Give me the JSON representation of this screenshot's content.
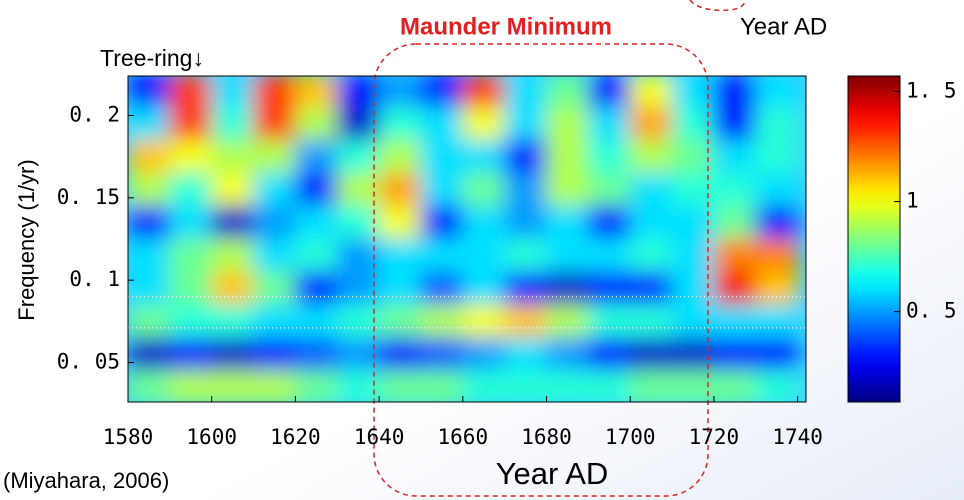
{
  "chart_data": {
    "type": "heatmap",
    "title": "Maunder Minimum",
    "annotations": [
      "Tree-ring↓",
      "Year AD",
      "(Miyahara, 2006)"
    ],
    "xlabel": "Year AD",
    "ylabel": "Frequency  (1/yr)",
    "x": [
      1585,
      1595,
      1605,
      1615,
      1625,
      1635,
      1645,
      1655,
      1665,
      1675,
      1685,
      1695,
      1705,
      1715,
      1725,
      1735
    ],
    "y": [
      0.215,
      0.195,
      0.175,
      0.155,
      0.135,
      0.115,
      0.095,
      0.075,
      0.055,
      0.035
    ],
    "z": [
      [
        0.3,
        1.3,
        0.6,
        1.3,
        1.1,
        0.3,
        0.5,
        0.3,
        1.3,
        0.6,
        0.8,
        0.3,
        1.0,
        0.6,
        0.3,
        0.6
      ],
      [
        0.6,
        1.3,
        0.7,
        1.3,
        0.9,
        0.2,
        0.7,
        0.6,
        1.0,
        0.6,
        0.9,
        0.6,
        1.15,
        0.7,
        0.3,
        0.7
      ],
      [
        1.1,
        1.0,
        0.9,
        0.9,
        0.5,
        0.7,
        0.9,
        0.6,
        0.6,
        0.3,
        0.9,
        0.7,
        0.9,
        0.8,
        0.6,
        0.7
      ],
      [
        0.9,
        0.7,
        1.0,
        0.6,
        0.3,
        0.9,
        1.15,
        0.6,
        0.8,
        0.5,
        0.9,
        0.8,
        0.6,
        0.7,
        0.7,
        0.6
      ],
      [
        0.3,
        0.6,
        0.2,
        0.5,
        0.6,
        0.7,
        1.0,
        0.3,
        0.6,
        0.5,
        0.6,
        0.3,
        0.6,
        0.6,
        0.8,
        0.3
      ],
      [
        0.6,
        0.8,
        0.9,
        0.6,
        0.7,
        0.5,
        0.6,
        0.6,
        0.6,
        0.7,
        0.6,
        0.6,
        0.7,
        0.6,
        1.2,
        1.2
      ],
      [
        0.6,
        0.8,
        1.1,
        0.8,
        0.3,
        0.5,
        0.6,
        0.4,
        0.6,
        0.3,
        0.2,
        0.3,
        0.3,
        0.6,
        1.4,
        1.1
      ],
      [
        0.8,
        0.7,
        0.7,
        0.6,
        0.6,
        0.7,
        0.8,
        0.9,
        1.0,
        1.1,
        0.9,
        0.7,
        0.7,
        0.6,
        0.6,
        0.6
      ],
      [
        0.2,
        0.3,
        0.2,
        0.3,
        0.4,
        0.5,
        0.3,
        0.4,
        0.5,
        0.6,
        0.5,
        0.3,
        0.2,
        0.2,
        0.3,
        0.3
      ],
      [
        0.8,
        0.9,
        0.9,
        0.9,
        0.8,
        0.7,
        0.8,
        0.8,
        0.7,
        0.7,
        0.7,
        0.7,
        0.8,
        0.8,
        0.8,
        0.7
      ]
    ],
    "xlim": [
      1580,
      1742
    ],
    "ylim": [
      0.026,
      0.224
    ],
    "xticks": [
      1580,
      1600,
      1620,
      1640,
      1660,
      1680,
      1700,
      1720,
      1740
    ],
    "yticks": [
      {
        "value": 0.05,
        "label": "0. 05"
      },
      {
        "value": 0.1,
        "label": "0. 1"
      },
      {
        "value": 0.15,
        "label": "0. 15"
      },
      {
        "value": 0.2,
        "label": "0. 2"
      }
    ],
    "clim": [
      0.09,
      1.57
    ],
    "cticks": [
      {
        "value": 0.5,
        "label": "0. 5"
      },
      1,
      {
        "value": 1.5,
        "label": "1. 5"
      }
    ],
    "colormap": "jet",
    "hlines": [
      0.09,
      0.071
    ]
  }
}
